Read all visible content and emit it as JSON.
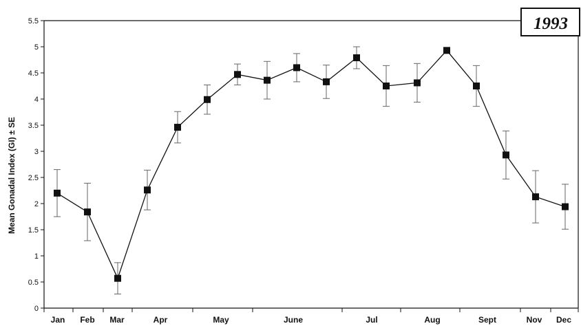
{
  "chart_data": {
    "type": "line",
    "title": "1993",
    "ylabel": "Mean Gonadal Index (GI) ± SE",
    "xlabel": "",
    "ylim": [
      0,
      5.5
    ],
    "yticks": [
      "0",
      "0.5",
      "1",
      "1.5",
      "2",
      "2.5",
      "3",
      "3.5",
      "4",
      "4.5",
      "5",
      "5.5"
    ],
    "month_labels": [
      "Jan",
      "Feb",
      "Mar",
      "Apr",
      "May",
      "June",
      "Jul",
      "Aug",
      "Sept",
      "Nov",
      "Dec"
    ],
    "grid": false,
    "series": [
      {
        "marker": "square",
        "color": "#111111",
        "points": [
          {
            "y": 2.2,
            "se": 0.45
          },
          {
            "y": 1.84,
            "se": 0.55
          },
          {
            "y": 0.57,
            "se": 0.3
          },
          {
            "y": 2.26,
            "se": 0.38
          },
          {
            "y": 3.46,
            "se": 0.3
          },
          {
            "y": 3.99,
            "se": 0.28
          },
          {
            "y": 4.47,
            "se": 0.2
          },
          {
            "y": 4.36,
            "se": 0.36
          },
          {
            "y": 4.6,
            "se": 0.27
          },
          {
            "y": 4.33,
            "se": 0.32
          },
          {
            "y": 4.79,
            "se": 0.21
          },
          {
            "y": 4.25,
            "se": 0.39
          },
          {
            "y": 4.31,
            "se": 0.37
          },
          {
            "y": 4.93,
            "se": 0.05
          },
          {
            "y": 4.25,
            "se": 0.39
          },
          {
            "y": 2.93,
            "se": 0.46
          },
          {
            "y": 2.13,
            "se": 0.5
          },
          {
            "y": 1.94,
            "se": 0.43
          }
        ]
      }
    ]
  }
}
